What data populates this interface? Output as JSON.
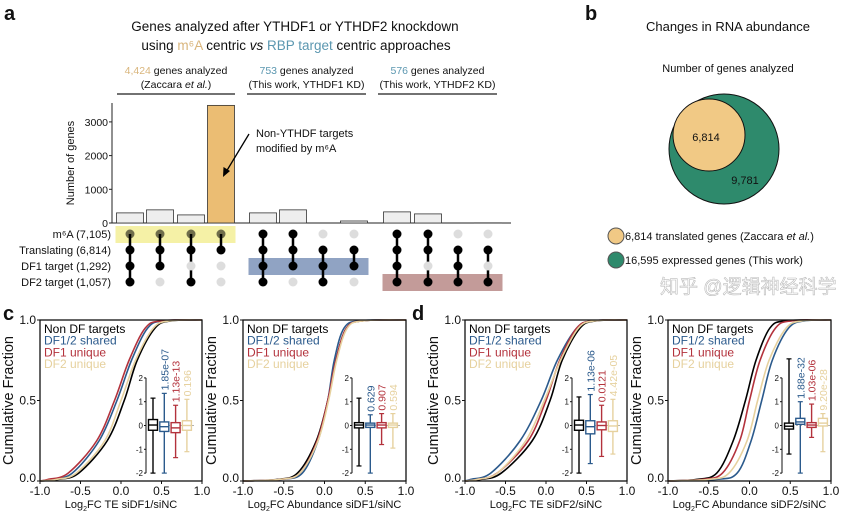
{
  "panel_letters": {
    "a": "a",
    "b": "b",
    "c": "c",
    "d": "d"
  },
  "colors": {
    "m6a_tan": "#d9b57c",
    "rbp_blue": "#5b97b0",
    "bar_highlight": "#ebbd73",
    "bar_gray": "#eeeeee",
    "yellow_band": "#f4ef9c",
    "blue_band": "#7d93b8",
    "red_band": "#b98a87",
    "venn_tan": "#f1c985",
    "venn_green": "#2e8a6c",
    "non_df": "#000000",
    "shared": "#2b5a8c",
    "df1": "#b3323c",
    "df2": "#e6d19e"
  },
  "panel_a": {
    "title_line1": "Genes analyzed after YTHDF1 or YTHDF2 knockdown",
    "title_line2": {
      "p1": "using ",
      "m6a": "m⁶A",
      "p2": " centric ",
      "vs": "vs",
      "p3": " ",
      "rbp": "RBP target",
      "p4": " centric approaches"
    },
    "groups": [
      {
        "count": "4,424",
        "text": " genes analyzed",
        "sub_a": "(Zaccara ",
        "sub_it": "et al.",
        "sub_b": ")"
      },
      {
        "count": "753",
        "text": " genes analyzed",
        "sub_a": "(This work, YTHDF1 KD)",
        "sub_it": "",
        "sub_b": ""
      },
      {
        "count": "576",
        "text": " genes analyzed",
        "sub_a": "(This work, YTHDF2 KD)",
        "sub_it": "",
        "sub_b": ""
      }
    ],
    "annotation": [
      "Non-YTHDF targets",
      "modified by m⁶A"
    ]
  },
  "chart_data": [
    {
      "type": "bar",
      "subtype": "upset",
      "ylabel": "Number of genes",
      "yticks": [
        "0",
        "1000",
        "2000",
        "3000"
      ],
      "ylim": [
        0,
        3500
      ],
      "sets": [
        "m⁶A (7,105)",
        "Translating (6,814)",
        "DF1 target (1,292)",
        "DF2 target (1,057)"
      ],
      "intersections": [
        {
          "members": [
            1,
            1,
            1,
            1
          ],
          "value": 300,
          "highlight": false
        },
        {
          "members": [
            1,
            1,
            1,
            0
          ],
          "value": 390,
          "highlight": false
        },
        {
          "members": [
            1,
            1,
            0,
            1
          ],
          "value": 240,
          "highlight": false
        },
        {
          "members": [
            1,
            1,
            0,
            0
          ],
          "value": 3490,
          "highlight": true
        },
        {
          "members": [
            1,
            1,
            1,
            1
          ],
          "value": 300,
          "highlight": false
        },
        {
          "members": [
            1,
            1,
            1,
            0
          ],
          "value": 390,
          "highlight": false
        },
        {
          "members": [
            0,
            1,
            1,
            1
          ],
          "value": 0,
          "highlight": false
        },
        {
          "members": [
            0,
            1,
            1,
            0
          ],
          "value": 60,
          "highlight": false
        },
        {
          "members": [
            1,
            1,
            1,
            1
          ],
          "value": 330,
          "highlight": false
        },
        {
          "members": [
            1,
            1,
            0,
            1
          ],
          "value": 270,
          "highlight": false
        },
        {
          "members": [
            0,
            1,
            1,
            1
          ],
          "value": 0,
          "highlight": false
        },
        {
          "members": [
            0,
            1,
            0,
            1
          ],
          "value": 5,
          "highlight": false
        }
      ],
      "highlight_bands": [
        {
          "set": 0,
          "columns": [
            0,
            3
          ],
          "color": "yellow_band"
        },
        {
          "set": 2,
          "columns": [
            4,
            7
          ],
          "color": "blue_band"
        },
        {
          "set": 3,
          "columns": [
            8,
            11
          ],
          "color": "red_band"
        }
      ]
    },
    {
      "type": "venn",
      "title": "Changes in RNA abundance",
      "subtitle": "Number of genes analyzed",
      "inner_label": "6,814",
      "outer_label": "9,781",
      "legend": [
        {
          "a": "6,814 translated genes (Zaccara ",
          "it": "et al.",
          "b": ")",
          "color": "venn_tan"
        },
        {
          "a": "16,595 expressed genes (This work)",
          "it": "",
          "b": "",
          "color": "venn_green"
        }
      ]
    },
    {
      "type": "line",
      "subtype": "cdf-with-boxplot-inset",
      "panel": "c",
      "ylabel": "Cumulative Fraction",
      "xlabel": {
        "a": "Log",
        "sub": "2",
        "b": "FC TE siDF1/siNC"
      },
      "xlim": [
        -1.0,
        1.0
      ],
      "ylim": [
        0,
        1
      ],
      "xticks": [
        "-1.0",
        "-0.5",
        "0.0",
        "0.5",
        "1.0"
      ],
      "yticks": [
        "0.0",
        "0.5",
        "1.0"
      ],
      "quantile_levels": [
        0.05,
        0.25,
        0.5,
        0.75,
        0.95
      ],
      "series": [
        {
          "name": "Non DF targets",
          "color": "non_df",
          "quantiles": [
            -0.52,
            -0.17,
            0.04,
            0.2,
            0.42
          ],
          "box": {
            "min": -2,
            "q1": -0.2,
            "median": 0.02,
            "q3": 0.25,
            "max": 1.15
          },
          "p": ""
        },
        {
          "name": "DF1/2 shared",
          "color": "shared",
          "quantiles": [
            -0.6,
            -0.27,
            -0.05,
            0.13,
            0.33
          ],
          "box": {
            "min": -2,
            "q1": -0.25,
            "median": -0.05,
            "q3": 0.15,
            "max": 1.35
          },
          "p": "1.85e-07"
        },
        {
          "name": "DF1 unique",
          "color": "df1",
          "quantiles": [
            -0.65,
            -0.3,
            -0.08,
            0.1,
            0.3
          ],
          "box": {
            "min": -1.35,
            "q1": -0.3,
            "median": -0.1,
            "q3": 0.12,
            "max": 0.85
          },
          "p": "1.13e-13"
        },
        {
          "name": "DF2 unique",
          "color": "df2",
          "quantiles": [
            -0.55,
            -0.2,
            0.0,
            0.18,
            0.4
          ],
          "box": {
            "min": -1.1,
            "q1": -0.2,
            "median": 0.0,
            "q3": 0.2,
            "max": 1.1
          },
          "p": "0.196"
        }
      ],
      "inset_yticks": [
        "2",
        "1",
        "0",
        "-1",
        "-2"
      ]
    },
    {
      "type": "line",
      "subtype": "cdf-with-boxplot-inset",
      "panel": "c",
      "ylabel": "Cumulative Fraction",
      "xlabel": {
        "a": "Log",
        "sub": "2",
        "b": "FC Abundance siDF1/siNC"
      },
      "xlim": [
        -1.0,
        1.0
      ],
      "ylim": [
        0,
        1
      ],
      "xticks": [
        "-1.0",
        "-0.5",
        "0.0",
        "0.5",
        "1.0"
      ],
      "yticks": [
        "0.0",
        "0.5",
        "1.0"
      ],
      "quantile_levels": [
        0.05,
        0.25,
        0.5,
        0.75,
        0.95
      ],
      "series": [
        {
          "name": "Non DF targets",
          "color": "non_df",
          "quantiles": [
            -0.33,
            -0.1,
            0.04,
            0.14,
            0.27
          ],
          "box": {
            "min": -1.7,
            "q1": -0.1,
            "median": 0.02,
            "q3": 0.12,
            "max": 1.15
          },
          "p": ""
        },
        {
          "name": "DF1/2 shared",
          "color": "shared",
          "quantiles": [
            -0.27,
            -0.08,
            0.04,
            0.12,
            0.24
          ],
          "box": {
            "min": -2,
            "q1": -0.08,
            "median": 0.02,
            "q3": 0.1,
            "max": 0.45
          },
          "p": "0.629"
        },
        {
          "name": "DF1 unique",
          "color": "df1",
          "quantiles": [
            -0.3,
            -0.09,
            0.04,
            0.14,
            0.27
          ],
          "box": {
            "min": -0.8,
            "q1": -0.1,
            "median": 0.02,
            "q3": 0.12,
            "max": 0.5
          },
          "p": "0.907"
        },
        {
          "name": "DF2 unique",
          "color": "df2",
          "quantiles": [
            -0.3,
            -0.08,
            0.05,
            0.15,
            0.28
          ],
          "box": {
            "min": -0.95,
            "q1": -0.08,
            "median": 0.02,
            "q3": 0.1,
            "max": 0.5
          },
          "p": "0.594"
        }
      ],
      "inset_yticks": [
        "2",
        "1",
        "0",
        "-1",
        "-2"
      ]
    },
    {
      "type": "line",
      "subtype": "cdf-with-boxplot-inset",
      "panel": "d",
      "ylabel": "Cumulative Fraction",
      "xlabel": {
        "a": "Log",
        "sub": "2",
        "b": "FC TE siDF2/siNC"
      },
      "xlim": [
        -1.0,
        1.0
      ],
      "ylim": [
        0,
        1
      ],
      "xticks": [
        "-1.0",
        "-0.5",
        "0.0",
        "0.5",
        "1.0"
      ],
      "yticks": [
        "0.0",
        "0.5",
        "1.0"
      ],
      "quantile_levels": [
        0.05,
        0.25,
        0.5,
        0.75,
        0.95
      ],
      "series": [
        {
          "name": "Non DF targets",
          "color": "non_df",
          "quantiles": [
            -0.55,
            -0.17,
            0.05,
            0.2,
            0.42
          ],
          "box": {
            "min": -2,
            "q1": -0.2,
            "median": 0.02,
            "q3": 0.22,
            "max": 1.2
          },
          "p": ""
        },
        {
          "name": "DF1/2 shared",
          "color": "shared",
          "quantiles": [
            -0.68,
            -0.32,
            -0.06,
            0.14,
            0.38
          ],
          "box": {
            "min": -1.6,
            "q1": -0.35,
            "median": -0.05,
            "q3": 0.2,
            "max": 1.3
          },
          "p": "1.13e-06"
        },
        {
          "name": "DF1 unique",
          "color": "df1",
          "quantiles": [
            -0.6,
            -0.22,
            0.0,
            0.17,
            0.38
          ],
          "box": {
            "min": -1.3,
            "q1": -0.18,
            "median": 0.0,
            "q3": 0.15,
            "max": 0.85
          },
          "p": "0.0121"
        },
        {
          "name": "DF2 unique",
          "color": "df2",
          "quantiles": [
            -0.6,
            -0.25,
            -0.02,
            0.18,
            0.4
          ],
          "box": {
            "min": -1.2,
            "q1": -0.25,
            "median": -0.02,
            "q3": 0.2,
            "max": 1.1
          },
          "p": "4.42e-05"
        }
      ],
      "inset_yticks": [
        "2",
        "1",
        "0",
        "-1",
        "-2"
      ]
    },
    {
      "type": "line",
      "subtype": "cdf-with-boxplot-inset",
      "panel": "d",
      "ylabel": "Cumulative Fraction",
      "xlabel": {
        "a": "Log",
        "sub": "2",
        "b": "FC Abundance siDF2/siNC"
      },
      "xlim": [
        -1.0,
        1.0
      ],
      "ylim": [
        0,
        1
      ],
      "xticks": [
        "-1.0",
        "-0.5",
        "0.0",
        "0.5",
        "1.0"
      ],
      "yticks": [
        "0.0",
        "0.5",
        "1.0"
      ],
      "quantile_levels": [
        0.05,
        0.25,
        0.5,
        0.75,
        0.95
      ],
      "series": [
        {
          "name": "Non DF targets",
          "color": "non_df",
          "quantiles": [
            -0.4,
            -0.2,
            -0.05,
            0.08,
            0.25
          ],
          "box": {
            "min": -1.2,
            "q1": -0.15,
            "median": -0.03,
            "q3": 0.1,
            "max": 2.8
          },
          "p": ""
        },
        {
          "name": "DF1/2 shared",
          "color": "shared",
          "quantiles": [
            -0.15,
            0.02,
            0.15,
            0.28,
            0.48
          ],
          "box": {
            "min": -2,
            "q1": 0.05,
            "median": 0.15,
            "q3": 0.3,
            "max": 1.0
          },
          "p": "1.88e-32"
        },
        {
          "name": "DF1 unique",
          "color": "df1",
          "quantiles": [
            -0.33,
            -0.12,
            0.0,
            0.13,
            0.32
          ],
          "box": {
            "min": -0.5,
            "q1": -0.08,
            "median": 0.02,
            "q3": 0.12,
            "max": 0.9
          },
          "p": "1.03e-06"
        },
        {
          "name": "DF2 unique",
          "color": "df2",
          "quantiles": [
            -0.25,
            -0.03,
            0.1,
            0.24,
            0.45
          ],
          "box": {
            "min": -1.1,
            "q1": -0.02,
            "median": 0.1,
            "q3": 0.3,
            "max": 0.5
          },
          "p": "9.20e-28"
        }
      ],
      "inset_yticks": [
        "2",
        "1",
        "0",
        "-1",
        "-2"
      ]
    }
  ],
  "watermark": "知乎 @逻辑神经科学"
}
